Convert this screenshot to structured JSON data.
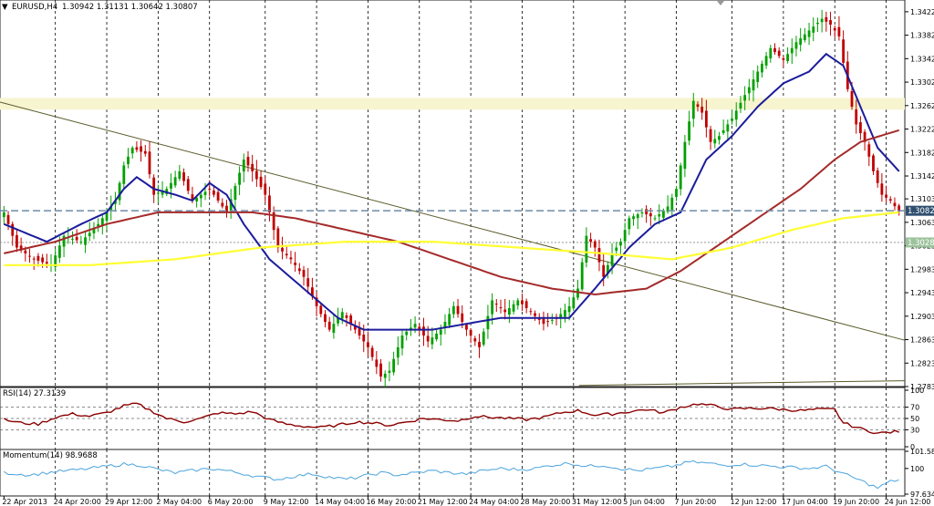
{
  "header": {
    "symbol_label": "EURUSD,H4",
    "ohlc_label": "1.30942 1.31131 1.30642 1.30807"
  },
  "colors": {
    "background": "#ffffff",
    "bull_candle": "#00a000",
    "bear_candle": "#c00000",
    "ma_fast": "#1c1c9c",
    "ma_mid": "#a52a2a",
    "ma_slow": "#ffff33",
    "zone": "#f7f4d0",
    "trendline": "#5b5b2b",
    "bid_line": "#6e8ca8",
    "rsi_line": "#8b0000",
    "momentum_line": "#4aa3dd"
  },
  "chart_data": [
    {
      "type": "candlestick",
      "panel": "main",
      "ylim": [
        1.2783,
        1.3442
      ],
      "y_ticks": [
        "1.34220",
        "1.33820",
        "1.33420",
        "1.33020",
        "1.32620",
        "1.32220",
        "1.31820",
        "1.31420",
        "1.31030",
        "1.30630",
        "1.30230",
        "1.29830",
        "1.29430",
        "1.29030",
        "1.28630",
        "1.28230",
        "1.27830"
      ],
      "x_labels": [
        "22 Apr 2013",
        "24 Apr 20:00",
        "29 Apr 12:00",
        "2 May 04:00",
        "6 May 20:00",
        "9 May 12:00",
        "14 May 04:00",
        "16 May 20:00",
        "21 May 12:00",
        "24 May 04:00",
        "28 May 20:00",
        "31 May 12:00",
        "5 Jun 04:00",
        "7 Jun 20:00",
        "12 Jun 12:00",
        "17 Jun 04:00",
        "19 Jun 20:00",
        "24 Jun 12:00"
      ],
      "price_markers": {
        "bid": "1.30827",
        "reference": "1.30287"
      },
      "bid_level": 1.30827,
      "reference_level": 1.30287,
      "zone_range": [
        1.3255,
        1.3275
      ],
      "trendline": {
        "start": [
          0,
          1.3268
        ],
        "end": [
          1,
          1.2862
        ]
      },
      "trendline2": {
        "start": [
          0.64,
          1.2785
        ],
        "end": [
          1,
          1.2793
        ]
      },
      "candle_count": 210,
      "close_anchors": [
        [
          0,
          1.308
        ],
        [
          3,
          1.302
        ],
        [
          7,
          1.3
        ],
        [
          11,
          1.299
        ],
        [
          14,
          1.304
        ],
        [
          18,
          1.303
        ],
        [
          22,
          1.306
        ],
        [
          26,
          1.31
        ],
        [
          28,
          1.316
        ],
        [
          30,
          1.319
        ],
        [
          33,
          1.318
        ],
        [
          35,
          1.311
        ],
        [
          38,
          1.312
        ],
        [
          41,
          1.315
        ],
        [
          44,
          1.31
        ],
        [
          48,
          1.312
        ],
        [
          52,
          1.308
        ],
        [
          56,
          1.317
        ],
        [
          58,
          1.315
        ],
        [
          61,
          1.311
        ],
        [
          64,
          1.302
        ],
        [
          67,
          1.3
        ],
        [
          70,
          1.297
        ],
        [
          73,
          1.292
        ],
        [
          76,
          1.288
        ],
        [
          79,
          1.291
        ],
        [
          82,
          1.288
        ],
        [
          85,
          1.285
        ],
        [
          88,
          1.28
        ],
        [
          90,
          1.281
        ],
        [
          93,
          1.287
        ],
        [
          96,
          1.289
        ],
        [
          99,
          1.286
        ],
        [
          102,
          1.288
        ],
        [
          105,
          1.292
        ],
        [
          108,
          1.288
        ],
        [
          111,
          1.285
        ],
        [
          114,
          1.293
        ],
        [
          117,
          1.291
        ],
        [
          120,
          1.293
        ],
        [
          123,
          1.291
        ],
        [
          126,
          1.289
        ],
        [
          129,
          1.29
        ],
        [
          132,
          1.292
        ],
        [
          134,
          1.295
        ],
        [
          136,
          1.304
        ],
        [
          138,
          1.302
        ],
        [
          140,
          1.297
        ],
        [
          142,
          1.301
        ],
        [
          144,
          1.303
        ],
        [
          146,
          1.307
        ],
        [
          149,
          1.308
        ],
        [
          152,
          1.307
        ],
        [
          155,
          1.309
        ],
        [
          157,
          1.312
        ],
        [
          159,
          1.32
        ],
        [
          161,
          1.327
        ],
        [
          163,
          1.325
        ],
        [
          165,
          1.32
        ],
        [
          167,
          1.321
        ],
        [
          170,
          1.324
        ],
        [
          173,
          1.328
        ],
        [
          176,
          1.332
        ],
        [
          179,
          1.336
        ],
        [
          182,
          1.334
        ],
        [
          185,
          1.337
        ],
        [
          188,
          1.339
        ],
        [
          191,
          1.341
        ],
        [
          193,
          1.34
        ],
        [
          195,
          1.338
        ],
        [
          197,
          1.329
        ],
        [
          199,
          1.323
        ],
        [
          201,
          1.32
        ],
        [
          203,
          1.315
        ],
        [
          205,
          1.311
        ],
        [
          207,
          1.31
        ],
        [
          209,
          1.3081
        ]
      ],
      "overlays": [
        {
          "name": "fast_ma",
          "anchors": [
            [
              0,
              1.306
            ],
            [
              10,
              1.303
            ],
            [
              18,
              1.306
            ],
            [
              24,
              1.308
            ],
            [
              28,
              1.312
            ],
            [
              31,
              1.314
            ],
            [
              35,
              1.312
            ],
            [
              40,
              1.311
            ],
            [
              44,
              1.31
            ],
            [
              48,
              1.313
            ],
            [
              52,
              1.311
            ],
            [
              56,
              1.306
            ],
            [
              62,
              1.3
            ],
            [
              70,
              1.295
            ],
            [
              78,
              1.29
            ],
            [
              84,
              1.288
            ],
            [
              92,
              1.288
            ],
            [
              100,
              1.288
            ],
            [
              108,
              1.289
            ],
            [
              116,
              1.29
            ],
            [
              124,
              1.29
            ],
            [
              132,
              1.29
            ],
            [
              138,
              1.295
            ],
            [
              146,
              1.302
            ],
            [
              152,
              1.306
            ],
            [
              158,
              1.308
            ],
            [
              164,
              1.317
            ],
            [
              170,
              1.321
            ],
            [
              176,
              1.326
            ],
            [
              182,
              1.33
            ],
            [
              188,
              1.332
            ],
            [
              192,
              1.335
            ],
            [
              196,
              1.333
            ],
            [
              200,
              1.326
            ],
            [
              204,
              1.319
            ],
            [
              209,
              1.315
            ]
          ]
        },
        {
          "name": "mid_ma",
          "anchors": [
            [
              0,
              1.301
            ],
            [
              12,
              1.303
            ],
            [
              24,
              1.306
            ],
            [
              36,
              1.308
            ],
            [
              48,
              1.308
            ],
            [
              58,
              1.308
            ],
            [
              68,
              1.307
            ],
            [
              80,
              1.305
            ],
            [
              92,
              1.303
            ],
            [
              104,
              1.3
            ],
            [
              116,
              1.297
            ],
            [
              128,
              1.295
            ],
            [
              138,
              1.294
            ],
            [
              150,
              1.295
            ],
            [
              158,
              1.298
            ],
            [
              166,
              1.302
            ],
            [
              176,
              1.307
            ],
            [
              186,
              1.312
            ],
            [
              194,
              1.317
            ],
            [
              200,
              1.32
            ],
            [
              209,
              1.322
            ]
          ]
        },
        {
          "name": "slow_ma",
          "anchors": [
            [
              0,
              1.299
            ],
            [
              20,
              1.299
            ],
            [
              40,
              1.3
            ],
            [
              60,
              1.302
            ],
            [
              80,
              1.303
            ],
            [
              100,
              1.303
            ],
            [
              120,
              1.302
            ],
            [
              140,
              1.301
            ],
            [
              156,
              1.3
            ],
            [
              170,
              1.302
            ],
            [
              184,
              1.305
            ],
            [
              196,
              1.307
            ],
            [
              209,
              1.308
            ]
          ]
        }
      ]
    },
    {
      "type": "line",
      "panel": "rsi",
      "label": "RSI(14) 27.3139",
      "ylim": [
        0,
        100
      ],
      "y_ticks": [
        "100",
        "70",
        "50",
        "30",
        "0"
      ],
      "levels": [
        70,
        50,
        30
      ],
      "anchors": [
        [
          0,
          48
        ],
        [
          4,
          42
        ],
        [
          8,
          40
        ],
        [
          12,
          52
        ],
        [
          16,
          58
        ],
        [
          20,
          54
        ],
        [
          24,
          60
        ],
        [
          28,
          72
        ],
        [
          31,
          76
        ],
        [
          34,
          65
        ],
        [
          38,
          50
        ],
        [
          42,
          44
        ],
        [
          46,
          50
        ],
        [
          50,
          60
        ],
        [
          54,
          58
        ],
        [
          58,
          62
        ],
        [
          62,
          48
        ],
        [
          66,
          40
        ],
        [
          70,
          36
        ],
        [
          74,
          34
        ],
        [
          78,
          38
        ],
        [
          82,
          44
        ],
        [
          86,
          42
        ],
        [
          90,
          38
        ],
        [
          94,
          44
        ],
        [
          98,
          50
        ],
        [
          102,
          48
        ],
        [
          106,
          46
        ],
        [
          110,
          54
        ],
        [
          114,
          52
        ],
        [
          118,
          50
        ],
        [
          122,
          48
        ],
        [
          126,
          52
        ],
        [
          130,
          60
        ],
        [
          134,
          64
        ],
        [
          138,
          56
        ],
        [
          142,
          58
        ],
        [
          146,
          62
        ],
        [
          150,
          66
        ],
        [
          154,
          60
        ],
        [
          158,
          70
        ],
        [
          162,
          76
        ],
        [
          166,
          72
        ],
        [
          170,
          66
        ],
        [
          174,
          68
        ],
        [
          178,
          68
        ],
        [
          182,
          66
        ],
        [
          186,
          64
        ],
        [
          190,
          66
        ],
        [
          194,
          66
        ],
        [
          196,
          42
        ],
        [
          200,
          32
        ],
        [
          204,
          24
        ],
        [
          209,
          27
        ]
      ]
    },
    {
      "type": "line",
      "panel": "momentum",
      "label": "Momentum(14) 98.9688",
      "ylim": [
        97.6341,
        101.5847
      ],
      "y_ticks": [
        "101.5847",
        "100",
        "97.6341"
      ],
      "anchors": [
        [
          0,
          99.6
        ],
        [
          6,
          99.4
        ],
        [
          12,
          99.7
        ],
        [
          18,
          99.9
        ],
        [
          24,
          100.2
        ],
        [
          28,
          100.4
        ],
        [
          32,
          100.3
        ],
        [
          36,
          99.9
        ],
        [
          40,
          99.6
        ],
        [
          44,
          99.8
        ],
        [
          48,
          100.0
        ],
        [
          52,
          99.8
        ],
        [
          56,
          99.5
        ],
        [
          60,
          99.2
        ],
        [
          64,
          99.0
        ],
        [
          68,
          99.3
        ],
        [
          72,
          99.5
        ],
        [
          76,
          99.2
        ],
        [
          80,
          99.0
        ],
        [
          84,
          99.3
        ],
        [
          88,
          99.6
        ],
        [
          92,
          99.4
        ],
        [
          96,
          99.6
        ],
        [
          100,
          99.8
        ],
        [
          104,
          99.6
        ],
        [
          108,
          99.5
        ],
        [
          112,
          99.8
        ],
        [
          116,
          100.0
        ],
        [
          120,
          99.9
        ],
        [
          124,
          100.0
        ],
        [
          128,
          100.3
        ],
        [
          132,
          100.5
        ],
        [
          136,
          100.2
        ],
        [
          140,
          100.3
        ],
        [
          144,
          100.0
        ],
        [
          148,
          99.8
        ],
        [
          152,
          100.0
        ],
        [
          156,
          100.2
        ],
        [
          160,
          100.6
        ],
        [
          164,
          100.5
        ],
        [
          168,
          100.3
        ],
        [
          172,
          100.4
        ],
        [
          176,
          100.3
        ],
        [
          180,
          100.2
        ],
        [
          184,
          100.1
        ],
        [
          188,
          100.0
        ],
        [
          192,
          100.2
        ],
        [
          196,
          99.5
        ],
        [
          200,
          98.9
        ],
        [
          204,
          98.2
        ],
        [
          207,
          98.8
        ],
        [
          209,
          98.97
        ]
      ]
    }
  ]
}
